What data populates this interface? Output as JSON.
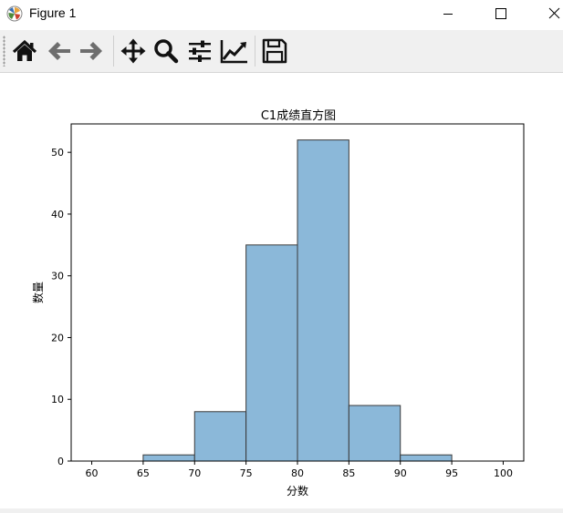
{
  "window": {
    "title": "Figure 1",
    "icon": "matplotlib-logo-icon",
    "controls": [
      "minimize-icon",
      "maximize-icon",
      "close-icon"
    ]
  },
  "toolbar": {
    "buttons": [
      {
        "name": "home-button",
        "icon": "home-icon"
      },
      {
        "name": "back-button",
        "icon": "arrow-left-icon"
      },
      {
        "name": "forward-button",
        "icon": "arrow-right-icon"
      },
      {
        "name": "pan-button",
        "icon": "move-arrows-icon"
      },
      {
        "name": "zoom-button",
        "icon": "magnifier-icon"
      },
      {
        "name": "subplots-button",
        "icon": "sliders-icon"
      },
      {
        "name": "edit-axes-button",
        "icon": "line-chart-icon"
      },
      {
        "name": "save-button",
        "icon": "floppy-disk-icon"
      }
    ]
  },
  "colors": {
    "bar_fill": "#8bb8d9",
    "bar_edge": "#3a3a3a",
    "toolbar_bg": "#f0f0f0"
  },
  "chart_data": {
    "type": "bar",
    "title": "C1成绩直方图",
    "xlabel": "分数",
    "ylabel": "数量",
    "bin_edges": [
      60,
      65,
      70,
      75,
      80,
      85,
      90,
      95,
      100
    ],
    "values": [
      0,
      1,
      8,
      35,
      52,
      9,
      1,
      0
    ],
    "xlim": [
      58,
      102
    ],
    "ylim": [
      0,
      54.6
    ],
    "xticks": [
      60,
      65,
      70,
      75,
      80,
      85,
      90,
      95,
      100
    ],
    "yticks": [
      0,
      10,
      20,
      30,
      40,
      50
    ],
    "grid": false
  }
}
